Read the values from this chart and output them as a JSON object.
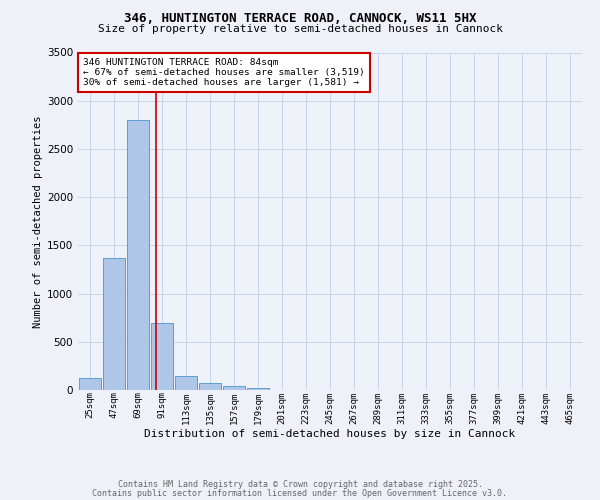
{
  "title_line1": "346, HUNTINGTON TERRACE ROAD, CANNOCK, WS11 5HX",
  "title_line2": "Size of property relative to semi-detached houses in Cannock",
  "xlabel": "Distribution of semi-detached houses by size in Cannock",
  "ylabel": "Number of semi-detached properties",
  "bin_labels": [
    "25sqm",
    "47sqm",
    "69sqm",
    "91sqm",
    "113sqm",
    "135sqm",
    "157sqm",
    "179sqm",
    "201sqm",
    "223sqm",
    "245sqm",
    "267sqm",
    "289sqm",
    "311sqm",
    "333sqm",
    "355sqm",
    "377sqm",
    "399sqm",
    "421sqm",
    "443sqm",
    "465sqm"
  ],
  "bin_values": [
    120,
    1370,
    2800,
    700,
    150,
    70,
    40,
    25,
    0,
    0,
    0,
    0,
    0,
    0,
    0,
    0,
    0,
    0,
    0,
    0,
    0
  ],
  "bar_color": "#aec6e8",
  "bar_edge_color": "#5a9fd4",
  "red_line_x": 2.73,
  "annotation_title": "346 HUNTINGTON TERRACE ROAD: 84sqm",
  "annotation_line2": "← 67% of semi-detached houses are smaller (3,519)",
  "annotation_line3": "30% of semi-detached houses are larger (1,581) →",
  "annotation_box_color": "#ffffff",
  "annotation_box_edge": "#cc0000",
  "vline_color": "#cc0000",
  "grid_color": "#c8d4e8",
  "bg_color": "#eef2f8",
  "footnote_line1": "Contains HM Land Registry data © Crown copyright and database right 2025.",
  "footnote_line2": "Contains public sector information licensed under the Open Government Licence v3.0.",
  "ylim": [
    0,
    3500
  ],
  "title1_fontsize": 9,
  "title2_fontsize": 8,
  "ylabel_fontsize": 7.5,
  "xlabel_fontsize": 8,
  "ytick_fontsize": 7.5,
  "xtick_fontsize": 6.5,
  "ann_fontsize": 6.8,
  "footnote_fontsize": 6.0
}
